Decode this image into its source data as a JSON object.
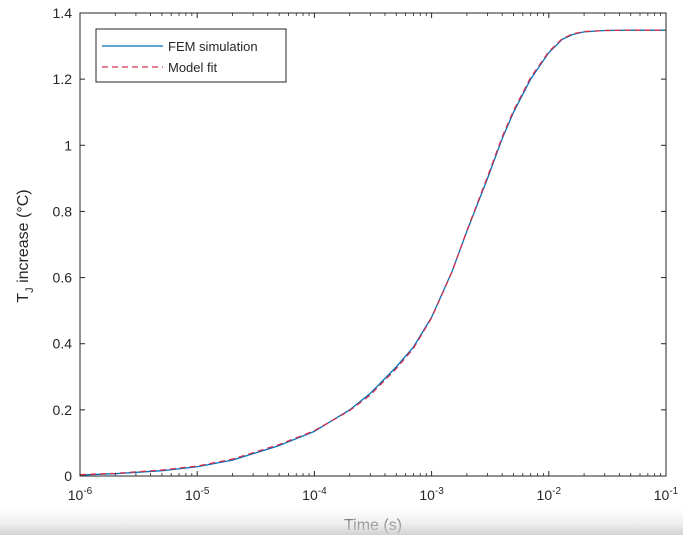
{
  "chart_data": {
    "type": "line",
    "xscale": "log",
    "xlabel": "Time (s)",
    "ylabel_main": "T",
    "ylabel_subscript": "J",
    "ylabel_rest": " increase (°C)",
    "xlim": [
      1e-06,
      0.1
    ],
    "ylim": [
      0,
      1.4
    ],
    "x_ticks": [
      {
        "value": 1e-06,
        "base": "10",
        "exp": "-6"
      },
      {
        "value": 1e-05,
        "base": "10",
        "exp": "-5"
      },
      {
        "value": 0.0001,
        "base": "10",
        "exp": "-4"
      },
      {
        "value": 0.001,
        "base": "10",
        "exp": "-3"
      },
      {
        "value": 0.01,
        "base": "10",
        "exp": "-2"
      },
      {
        "value": 0.1,
        "base": "10",
        "exp": "-1"
      }
    ],
    "y_ticks": [
      {
        "value": 0,
        "label": "0"
      },
      {
        "value": 0.2,
        "label": "0.2"
      },
      {
        "value": 0.4,
        "label": "0.4"
      },
      {
        "value": 0.6,
        "label": "0.6"
      },
      {
        "value": 0.8,
        "label": "0.8"
      },
      {
        "value": 1.0,
        "label": "1"
      },
      {
        "value": 1.2,
        "label": "1.2"
      },
      {
        "value": 1.4,
        "label": "1.4"
      }
    ],
    "grid": false,
    "legend_position": "top-left",
    "series": [
      {
        "name": "FEM simulation",
        "color": "#0072BD",
        "style": "solid",
        "x": [
          1e-06,
          2e-06,
          5e-06,
          1e-05,
          2e-05,
          5e-05,
          0.0001,
          0.0002,
          0.0003,
          0.0005,
          0.0007,
          0.001,
          0.0015,
          0.002,
          0.003,
          0.004,
          0.005,
          0.007,
          0.01,
          0.013,
          0.016,
          0.02,
          0.03,
          0.05,
          0.1
        ],
        "y": [
          0.003,
          0.007,
          0.016,
          0.028,
          0.048,
          0.092,
          0.135,
          0.2,
          0.25,
          0.33,
          0.39,
          0.48,
          0.62,
          0.74,
          0.9,
          1.02,
          1.1,
          1.2,
          1.28,
          1.32,
          1.335,
          1.343,
          1.347,
          1.348,
          1.348
        ]
      },
      {
        "name": "Model fit",
        "color": "#D62E4B",
        "style": "dashed",
        "x": [
          1e-06,
          2e-06,
          5e-06,
          1e-05,
          2e-05,
          5e-05,
          0.0001,
          0.0002,
          0.0003,
          0.0005,
          0.0007,
          0.001,
          0.0015,
          0.002,
          0.003,
          0.004,
          0.005,
          0.007,
          0.01,
          0.013,
          0.016,
          0.02,
          0.03,
          0.05,
          0.1
        ],
        "y": [
          0.004,
          0.008,
          0.018,
          0.03,
          0.051,
          0.095,
          0.137,
          0.198,
          0.245,
          0.325,
          0.386,
          0.478,
          0.619,
          0.742,
          0.905,
          1.025,
          1.105,
          1.205,
          1.283,
          1.322,
          1.337,
          1.344,
          1.347,
          1.348,
          1.348
        ]
      }
    ]
  }
}
